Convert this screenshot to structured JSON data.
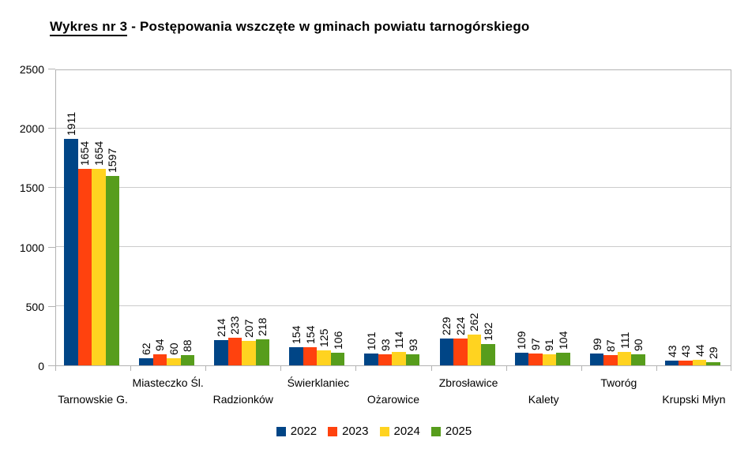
{
  "title": {
    "underlined": "Wykres nr 3",
    "rest": " - Postępowania wszczęte w gminach powiatu tarnogórskiego"
  },
  "chart_data": {
    "type": "bar",
    "title": "Wykres nr 3 - Postępowania wszczęte w gminach powiatu tarnogórskiego",
    "categories": [
      "Tarnowskie G.",
      "Miasteczko Śl.",
      "Radzionków",
      "Świerklaniec",
      "Ożarowice",
      "Zbrosławice",
      "Kalety",
      "Tworóg",
      "Krupski Młyn"
    ],
    "series": [
      {
        "name": "2022",
        "color": "#004586",
        "values": [
          1911,
          62,
          214,
          154,
          101,
          229,
          109,
          99,
          43
        ]
      },
      {
        "name": "2023",
        "color": "#ff420e",
        "values": [
          1654,
          94,
          233,
          154,
          93,
          224,
          97,
          87,
          43
        ]
      },
      {
        "name": "2024",
        "color": "#ffd320",
        "values": [
          1654,
          60,
          207,
          125,
          114,
          262,
          91,
          111,
          44
        ]
      },
      {
        "name": "2025",
        "color": "#579d1c",
        "values": [
          1597,
          88,
          218,
          106,
          93,
          182,
          104,
          90,
          29
        ]
      }
    ],
    "xlabel": "",
    "ylabel": "",
    "ylim": [
      0,
      2500
    ],
    "ytick_step": 500,
    "yticks": [
      0,
      500,
      1000,
      1500,
      2000,
      2500
    ],
    "grid": true,
    "value_labels": true,
    "value_label_rotation": 90,
    "legend_position": "bottom",
    "colors": {
      "grid": "#cccccc",
      "axis": "#b3b3b3",
      "text": "#000000",
      "background": "#ffffff"
    }
  }
}
